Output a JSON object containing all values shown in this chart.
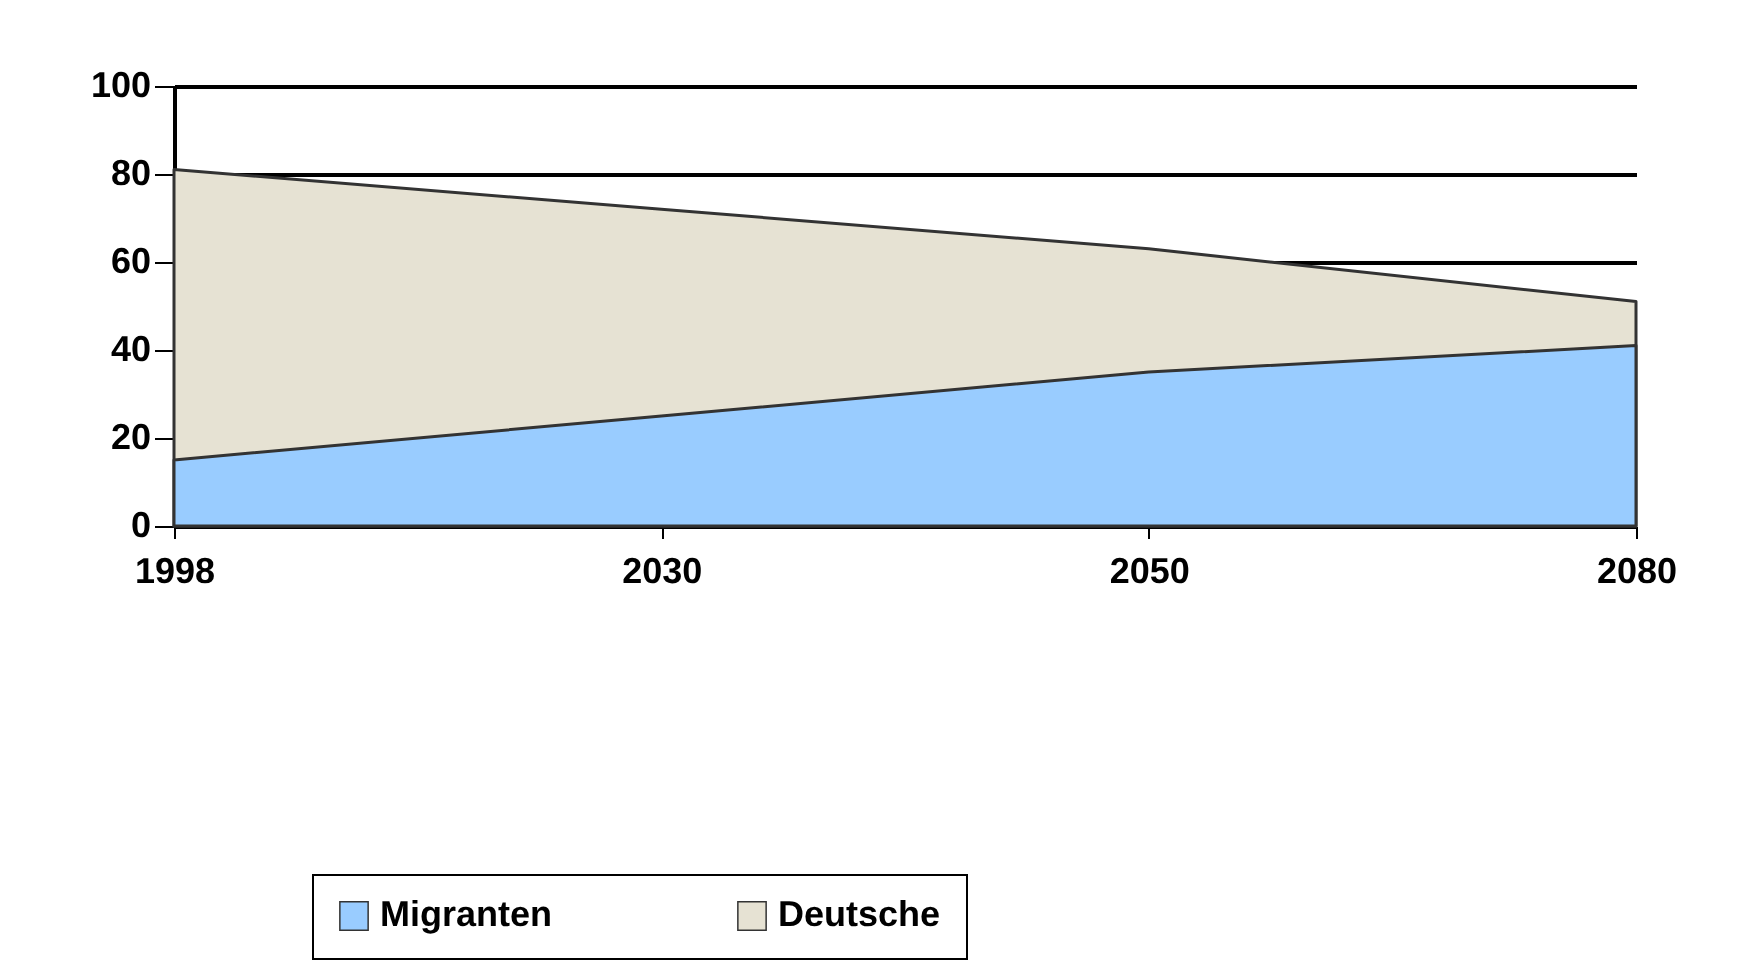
{
  "chart_data": {
    "type": "area",
    "categories": [
      "1998",
      "2030",
      "2050",
      "2080"
    ],
    "series": [
      {
        "name": "Migranten",
        "color": "#99ccff",
        "values": [
          15,
          25,
          35,
          41
        ]
      },
      {
        "name": "Deutsche",
        "color": "#e6e2d3",
        "values": [
          81,
          72,
          63,
          51
        ]
      }
    ],
    "ylim": [
      0,
      100
    ],
    "yticks": [
      0,
      20,
      40,
      60,
      80,
      100
    ],
    "grid": "y",
    "legend": "bottom"
  }
}
